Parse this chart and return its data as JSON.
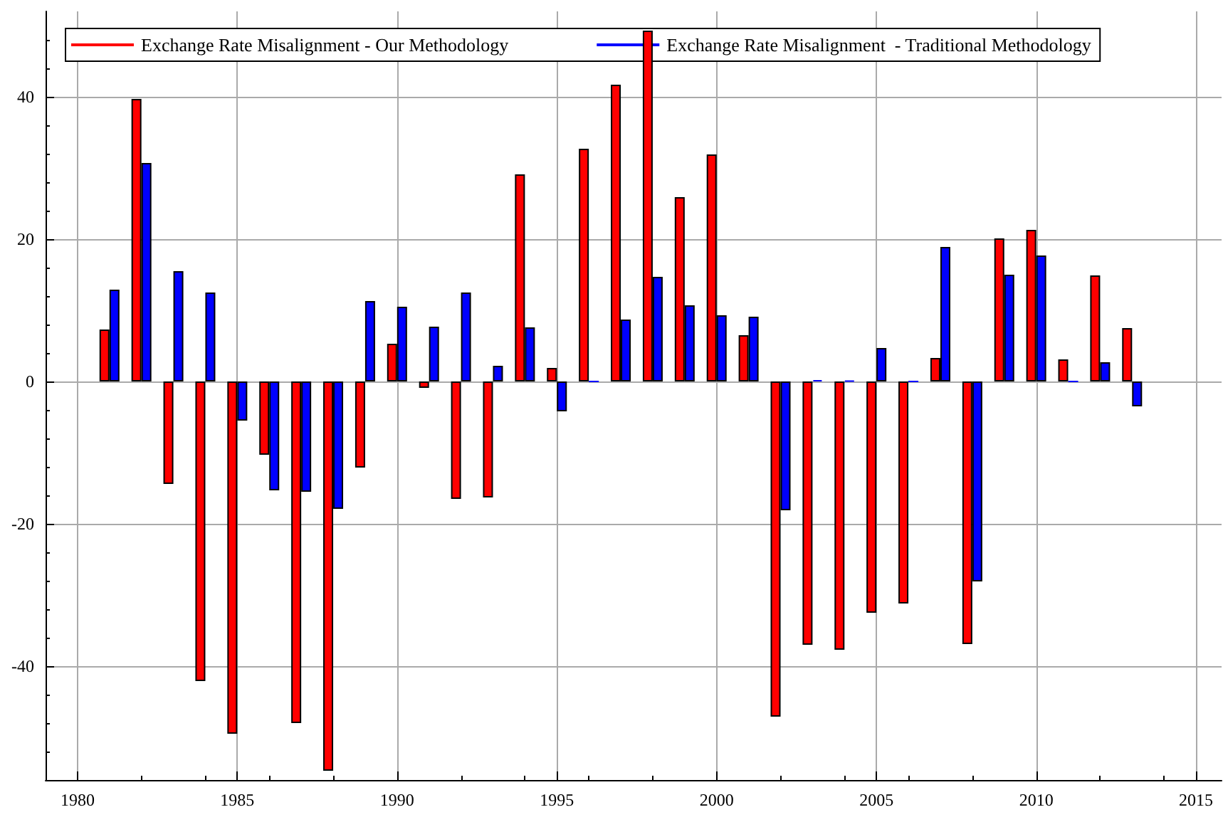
{
  "chart_data": {
    "type": "bar",
    "x": [
      1981,
      1982,
      1983,
      1984,
      1985,
      1986,
      1987,
      1988,
      1989,
      1990,
      1991,
      1992,
      1993,
      1994,
      1995,
      1996,
      1997,
      1998,
      1999,
      2000,
      2001,
      2002,
      2003,
      2004,
      2005,
      2006,
      2007,
      2008,
      2009,
      2010,
      2011,
      2012,
      2013
    ],
    "series": [
      {
        "name": "Exchange Rate Misalignment - Our Methodology",
        "color": "#ff0000",
        "values": [
          7.3,
          39.7,
          -14.4,
          -42.1,
          -49.5,
          -10.3,
          -48,
          -54.7,
          -12.1,
          5.3,
          -0.9,
          -16.5,
          -16.3,
          29.1,
          1.9,
          32.7,
          41.7,
          49.3,
          25.9,
          31.9,
          6.5,
          -47.1,
          -37,
          -37.7,
          -32.5,
          -31.2,
          3.3,
          -36.9,
          20.1,
          21.3,
          3.1,
          14.9,
          7.5
        ]
      },
      {
        "name": "Exchange Rate Misalignment  - Traditional Methodology",
        "color": "#0000ff",
        "values": [
          12.9,
          30.7,
          15.5,
          12.5,
          -5.5,
          -15.3,
          -15.5,
          -17.9,
          11.3,
          10.5,
          7.7,
          12.5,
          2.2,
          7.6,
          -4.2,
          0,
          8.7,
          14.7,
          10.7,
          9.3,
          9.1,
          -18.1,
          0.2,
          0.1,
          4.7,
          0,
          18.9,
          -28.1,
          15,
          17.7,
          0,
          2.7,
          -3.5
        ]
      }
    ],
    "xlim": [
      1979,
      2015.8
    ],
    "xticks": [
      1980,
      1985,
      1990,
      1995,
      2000,
      2005,
      2010,
      2015
    ],
    "ylim": [
      -56,
      52
    ],
    "yticks": [
      -40,
      -20,
      0,
      20,
      40
    ],
    "grid": true,
    "legend": "top left"
  }
}
